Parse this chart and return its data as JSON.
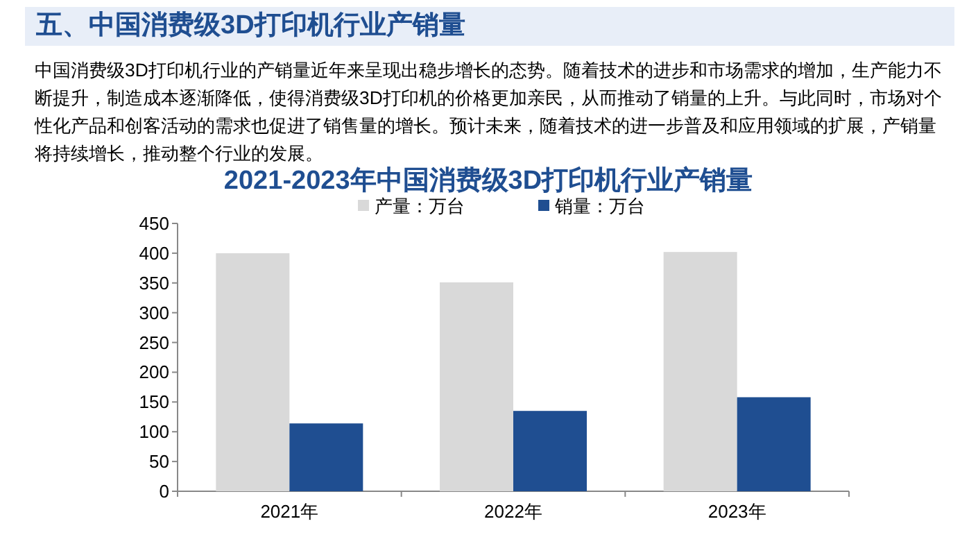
{
  "chart_data": {
    "type": "bar",
    "annotations": [
      "五、中国消费级3D打印机行业产销量"
    ],
    "subtitle": "中国消费级3D打印机行业的产销量近年来呈现出稳步增长的态势。随着技术的进步和市场需求的增加，生产能力不断提升，制造成本逐渐降低，使得消费级3D打印机的价格更加亲民，从而推动了销量的上升。与此同时，市场对个性化产品和创客活动的需求也促进了销售量的增长。预计未来，随着技术的进一步普及和应用领域的扩展，产销量将持续增长，推动整个行业的发展。",
    "title": "2021-2023年中国消费级3D打印机行业产销量",
    "categories": [
      "2021年",
      "2022年",
      "2023年"
    ],
    "series": [
      {
        "name": "产量：万台",
        "color": "#d9d9d9",
        "values": [
          400,
          351,
          402
        ]
      },
      {
        "name": "销量：万台",
        "color": "#1f4e91",
        "values": [
          114,
          135,
          158
        ]
      }
    ],
    "ylim": [
      0,
      450
    ],
    "yticks": [
      0,
      50,
      100,
      150,
      200,
      250,
      300,
      350,
      400,
      450
    ],
    "grid": false,
    "legend": "top"
  }
}
